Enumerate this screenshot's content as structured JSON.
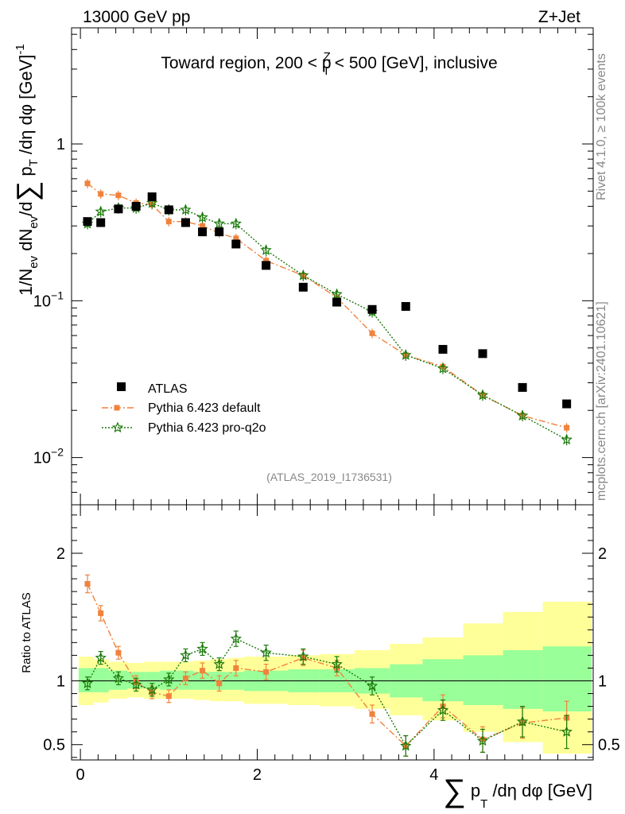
{
  "header": {
    "left": "13000 GeV pp",
    "right": "Z+Jet",
    "rivet": "Rivet 4.1.0, ≥ 100k events",
    "mcplots": "mcplots.cern.ch [arXiv:2401.10621]",
    "analysis": "(ATLAS_2019_I1736531)"
  },
  "colors": {
    "data": "#000000",
    "default": "#f0823c",
    "proq2o": "#1a7a0a",
    "band_inner": "#99ff99",
    "band_outer": "#ffff99"
  },
  "chart_data": [
    {
      "type": "scatter",
      "title": "Toward region, 200 < p_T^Z < 500 [GeV], inclusive",
      "title_parts": {
        "a": "Toward region, 200 < p",
        "sup": "Z",
        "sub": "T",
        "b": " < 500 [GeV], inclusive"
      },
      "ylabel": "1/N_ev dN_ev/d∑p_T/dη dφ [GeV]^-1",
      "ylabel_parts": {
        "p1": "1/N",
        "s1": "ev",
        "p2": " dN",
        "s2": "ev",
        "p3": "/d",
        "sum": "∑",
        "p4": " p",
        "s3": "T",
        "p5": " /dη dφ  [GeV]",
        "sup": "-1"
      },
      "yscale": "log",
      "ylim": [
        0.005,
        5.5
      ],
      "yticks": [
        {
          "v": 0.01,
          "base": "10",
          "exp": "−2"
        },
        {
          "v": 0.1,
          "base": "10",
          "exp": "−1"
        },
        {
          "v": 1,
          "base": "1",
          "exp": ""
        }
      ],
      "xlim": [
        -0.1,
        5.8
      ],
      "legend_position": "center-left",
      "x": [
        0.08,
        0.23,
        0.43,
        0.63,
        0.81,
        1.0,
        1.19,
        1.38,
        1.57,
        1.76,
        2.1,
        2.52,
        2.9,
        3.3,
        3.68,
        4.1,
        4.55,
        5.0,
        5.5
      ],
      "series": [
        {
          "name": "ATLAS",
          "values": [
            0.32,
            0.315,
            0.385,
            0.4,
            0.46,
            0.38,
            0.315,
            0.275,
            0.275,
            0.23,
            0.168,
            0.122,
            0.098,
            0.088,
            0.092,
            0.049,
            0.046,
            0.028,
            0.022
          ]
        },
        {
          "name": "Pythia 6.423 default",
          "values": [
            0.56,
            0.48,
            0.47,
            0.42,
            0.41,
            0.32,
            0.32,
            0.3,
            0.27,
            0.25,
            0.18,
            0.145,
            0.105,
            0.062,
            0.045,
            0.038,
            0.025,
            0.0185,
            0.0155
          ]
        },
        {
          "name": "Pythia 6.423 pro-q2o",
          "values": [
            0.31,
            0.37,
            0.39,
            0.39,
            0.42,
            0.38,
            0.38,
            0.34,
            0.31,
            0.31,
            0.21,
            0.145,
            0.11,
            0.085,
            0.045,
            0.037,
            0.025,
            0.0185,
            0.013
          ]
        }
      ]
    },
    {
      "type": "scatter",
      "ylabel": "Ratio to ATLAS",
      "xlabel": "∑ p_T /dη dφ [GeV]",
      "xlabel_parts": {
        "sum": "∑",
        "p": " p",
        "sub": "T",
        "rest": " /dη dφ [GeV]"
      },
      "ylim": [
        0.38,
        2.38
      ],
      "yticks": [
        0.5,
        1,
        2
      ],
      "xlim": [
        -0.1,
        5.8
      ],
      "xticks": [
        0,
        2,
        4
      ],
      "x": [
        0.08,
        0.23,
        0.43,
        0.63,
        0.81,
        1.0,
        1.19,
        1.38,
        1.57,
        1.76,
        2.1,
        2.52,
        2.9,
        3.3,
        3.68,
        4.1,
        4.55,
        5.0,
        5.5
      ],
      "band_edges": [
        -0.02,
        0.15,
        0.32,
        0.53,
        0.72,
        0.9,
        1.1,
        1.28,
        1.47,
        1.67,
        1.85,
        2.35,
        2.7,
        3.1,
        3.5,
        3.87,
        4.33,
        4.78,
        5.23,
        5.78
      ],
      "band_inner": [
        [
          0.91,
          1.1
        ],
        [
          0.91,
          1.1
        ],
        [
          0.93,
          1.08
        ],
        [
          0.94,
          1.07
        ],
        [
          0.94,
          1.07
        ],
        [
          0.93,
          1.08
        ],
        [
          0.93,
          1.08
        ],
        [
          0.93,
          1.07
        ],
        [
          0.93,
          1.07
        ],
        [
          0.93,
          1.07
        ],
        [
          0.92,
          1.08
        ],
        [
          0.91,
          1.09
        ],
        [
          0.91,
          1.09
        ],
        [
          0.9,
          1.1
        ],
        [
          0.87,
          1.13
        ],
        [
          0.84,
          1.17
        ],
        [
          0.81,
          1.2
        ],
        [
          0.78,
          1.24
        ],
        [
          0.76,
          1.27
        ]
      ],
      "band_outer": [
        [
          0.81,
          1.19
        ],
        [
          0.83,
          1.17
        ],
        [
          0.86,
          1.15
        ],
        [
          0.87,
          1.14
        ],
        [
          0.86,
          1.15
        ],
        [
          0.86,
          1.15
        ],
        [
          0.86,
          1.15
        ],
        [
          0.85,
          1.16
        ],
        [
          0.84,
          1.17
        ],
        [
          0.84,
          1.18
        ],
        [
          0.82,
          1.19
        ],
        [
          0.81,
          1.2
        ],
        [
          0.8,
          1.21
        ],
        [
          0.78,
          1.24
        ],
        [
          0.73,
          1.29
        ],
        [
          0.69,
          1.34
        ],
        [
          0.6,
          1.45
        ],
        [
          0.52,
          1.54
        ],
        [
          0.43,
          1.62
        ]
      ],
      "series": [
        {
          "name": "Pythia 6.423 default",
          "values": [
            1.76,
            1.53,
            1.22,
            0.99,
            0.91,
            0.88,
            1.02,
            1.08,
            0.98,
            1.1,
            1.07,
            1.18,
            1.1,
            0.74,
            0.49,
            0.8,
            0.54,
            0.67,
            0.71
          ],
          "err": [
            0.07,
            0.06,
            0.05,
            0.05,
            0.05,
            0.05,
            0.05,
            0.06,
            0.06,
            0.06,
            0.06,
            0.06,
            0.06,
            0.07,
            0.08,
            0.09,
            0.1,
            0.12,
            0.13
          ]
        },
        {
          "name": "Pythia 6.423 pro-q2o",
          "values": [
            0.98,
            1.18,
            1.02,
            0.97,
            0.93,
            1.01,
            1.2,
            1.25,
            1.13,
            1.33,
            1.22,
            1.19,
            1.13,
            0.96,
            0.49,
            0.77,
            0.53,
            0.68,
            0.6
          ],
          "err": [
            0.05,
            0.05,
            0.05,
            0.05,
            0.05,
            0.05,
            0.05,
            0.05,
            0.05,
            0.06,
            0.06,
            0.06,
            0.06,
            0.07,
            0.08,
            0.08,
            0.09,
            0.12,
            0.13
          ]
        }
      ]
    }
  ]
}
